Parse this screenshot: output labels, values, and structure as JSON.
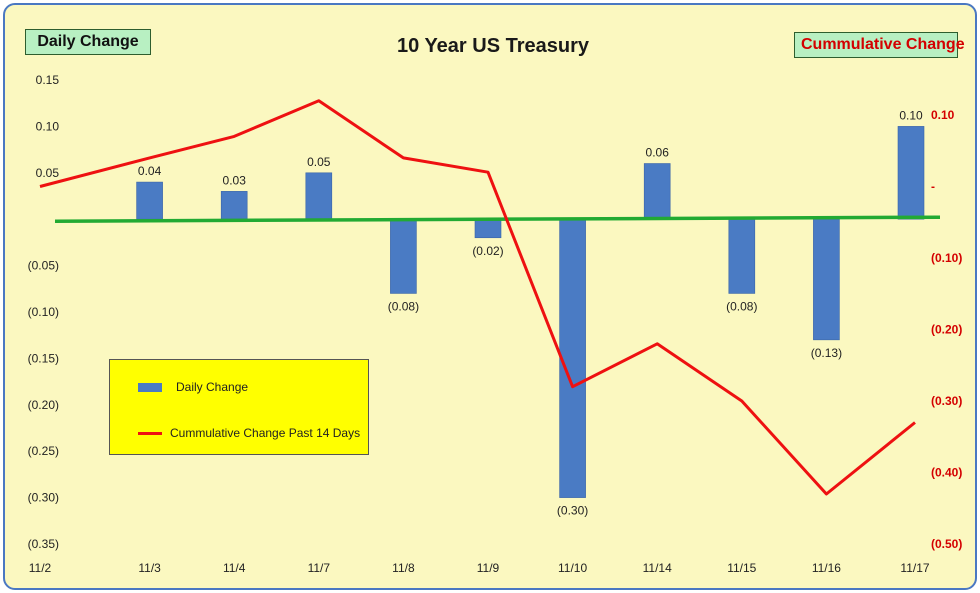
{
  "chart_data": {
    "type": "bar+line",
    "title": "10 Year US Treasury",
    "left_axis_tag": "Daily Change",
    "right_axis_tag": "Cummulative Change",
    "categories": [
      "11/2",
      "11/3",
      "11/4",
      "11/7",
      "11/8",
      "11/9",
      "11/10",
      "11/14",
      "11/15",
      "11/16",
      "11/17"
    ],
    "series": [
      {
        "name": "Daily Change",
        "type": "bar",
        "axis": "left",
        "color": "#4a7bc4",
        "values": [
          null,
          0.04,
          0.03,
          0.05,
          -0.08,
          -0.02,
          -0.3,
          0.06,
          -0.08,
          -0.13,
          0.1
        ],
        "labels": [
          "",
          "0.04",
          "0.03",
          "0.05",
          "(0.08)",
          "(0.02)",
          "(0.30)",
          "0.06",
          "(0.08)",
          "(0.13)",
          "0.10"
        ]
      },
      {
        "name": "Cummulative Change Past 14 Days",
        "type": "line",
        "axis": "right",
        "color": "#ee1111",
        "values": [
          0.0,
          0.04,
          0.07,
          0.12,
          0.04,
          0.02,
          -0.28,
          -0.22,
          -0.3,
          -0.43,
          -0.33
        ]
      }
    ],
    "zero_line_color": "#22aa33",
    "y_left": {
      "range": [
        -0.35,
        0.15
      ],
      "ticks": [
        0.15,
        0.1,
        0.05,
        0,
        -0.05,
        -0.1,
        -0.15,
        -0.2,
        -0.25,
        -0.3,
        -0.35
      ],
      "tick_labels": [
        "0.15",
        "0.10",
        "0.05",
        "-",
        "(0.05)",
        "(0.10)",
        "(0.15)",
        "(0.20)",
        "(0.25)",
        "(0.30)",
        "(0.35)"
      ]
    },
    "y_right": {
      "range": [
        -0.5,
        0.1
      ],
      "ticks": [
        0.1,
        0,
        -0.1,
        -0.2,
        -0.3,
        -0.4,
        -0.5
      ],
      "tick_labels": [
        "0.10",
        "-",
        "(0.10)",
        "(0.20)",
        "(0.30)",
        "(0.40)",
        "(0.50)"
      ],
      "color": "#d40000"
    },
    "legend_position": "lower-left",
    "grid": false
  }
}
